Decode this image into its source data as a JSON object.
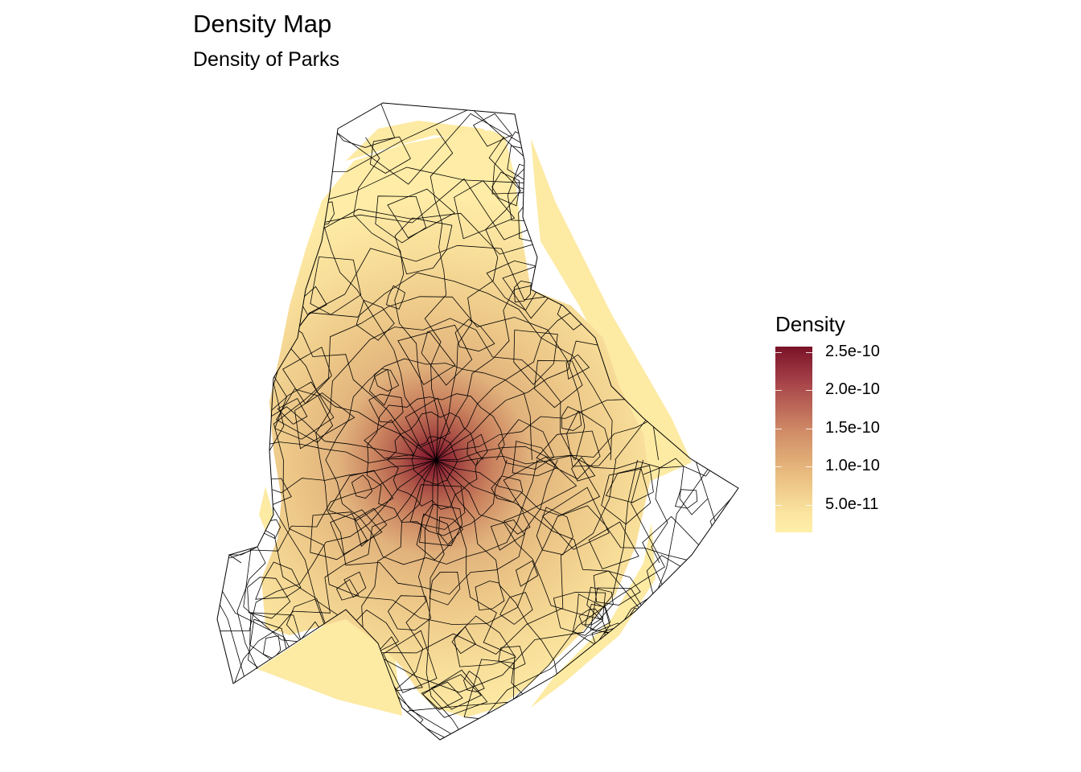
{
  "title": "Density Map",
  "subtitle": "Density of Parks",
  "legend": {
    "title": "Density",
    "labels": [
      "2.5e-10",
      "2.0e-10",
      "1.5e-10",
      "1.0e-10",
      "5.0e-11"
    ]
  },
  "colors": {
    "high": "#7a1228",
    "mid": "#d09869",
    "low": "#ffefa8",
    "boundary": "#000000"
  }
}
